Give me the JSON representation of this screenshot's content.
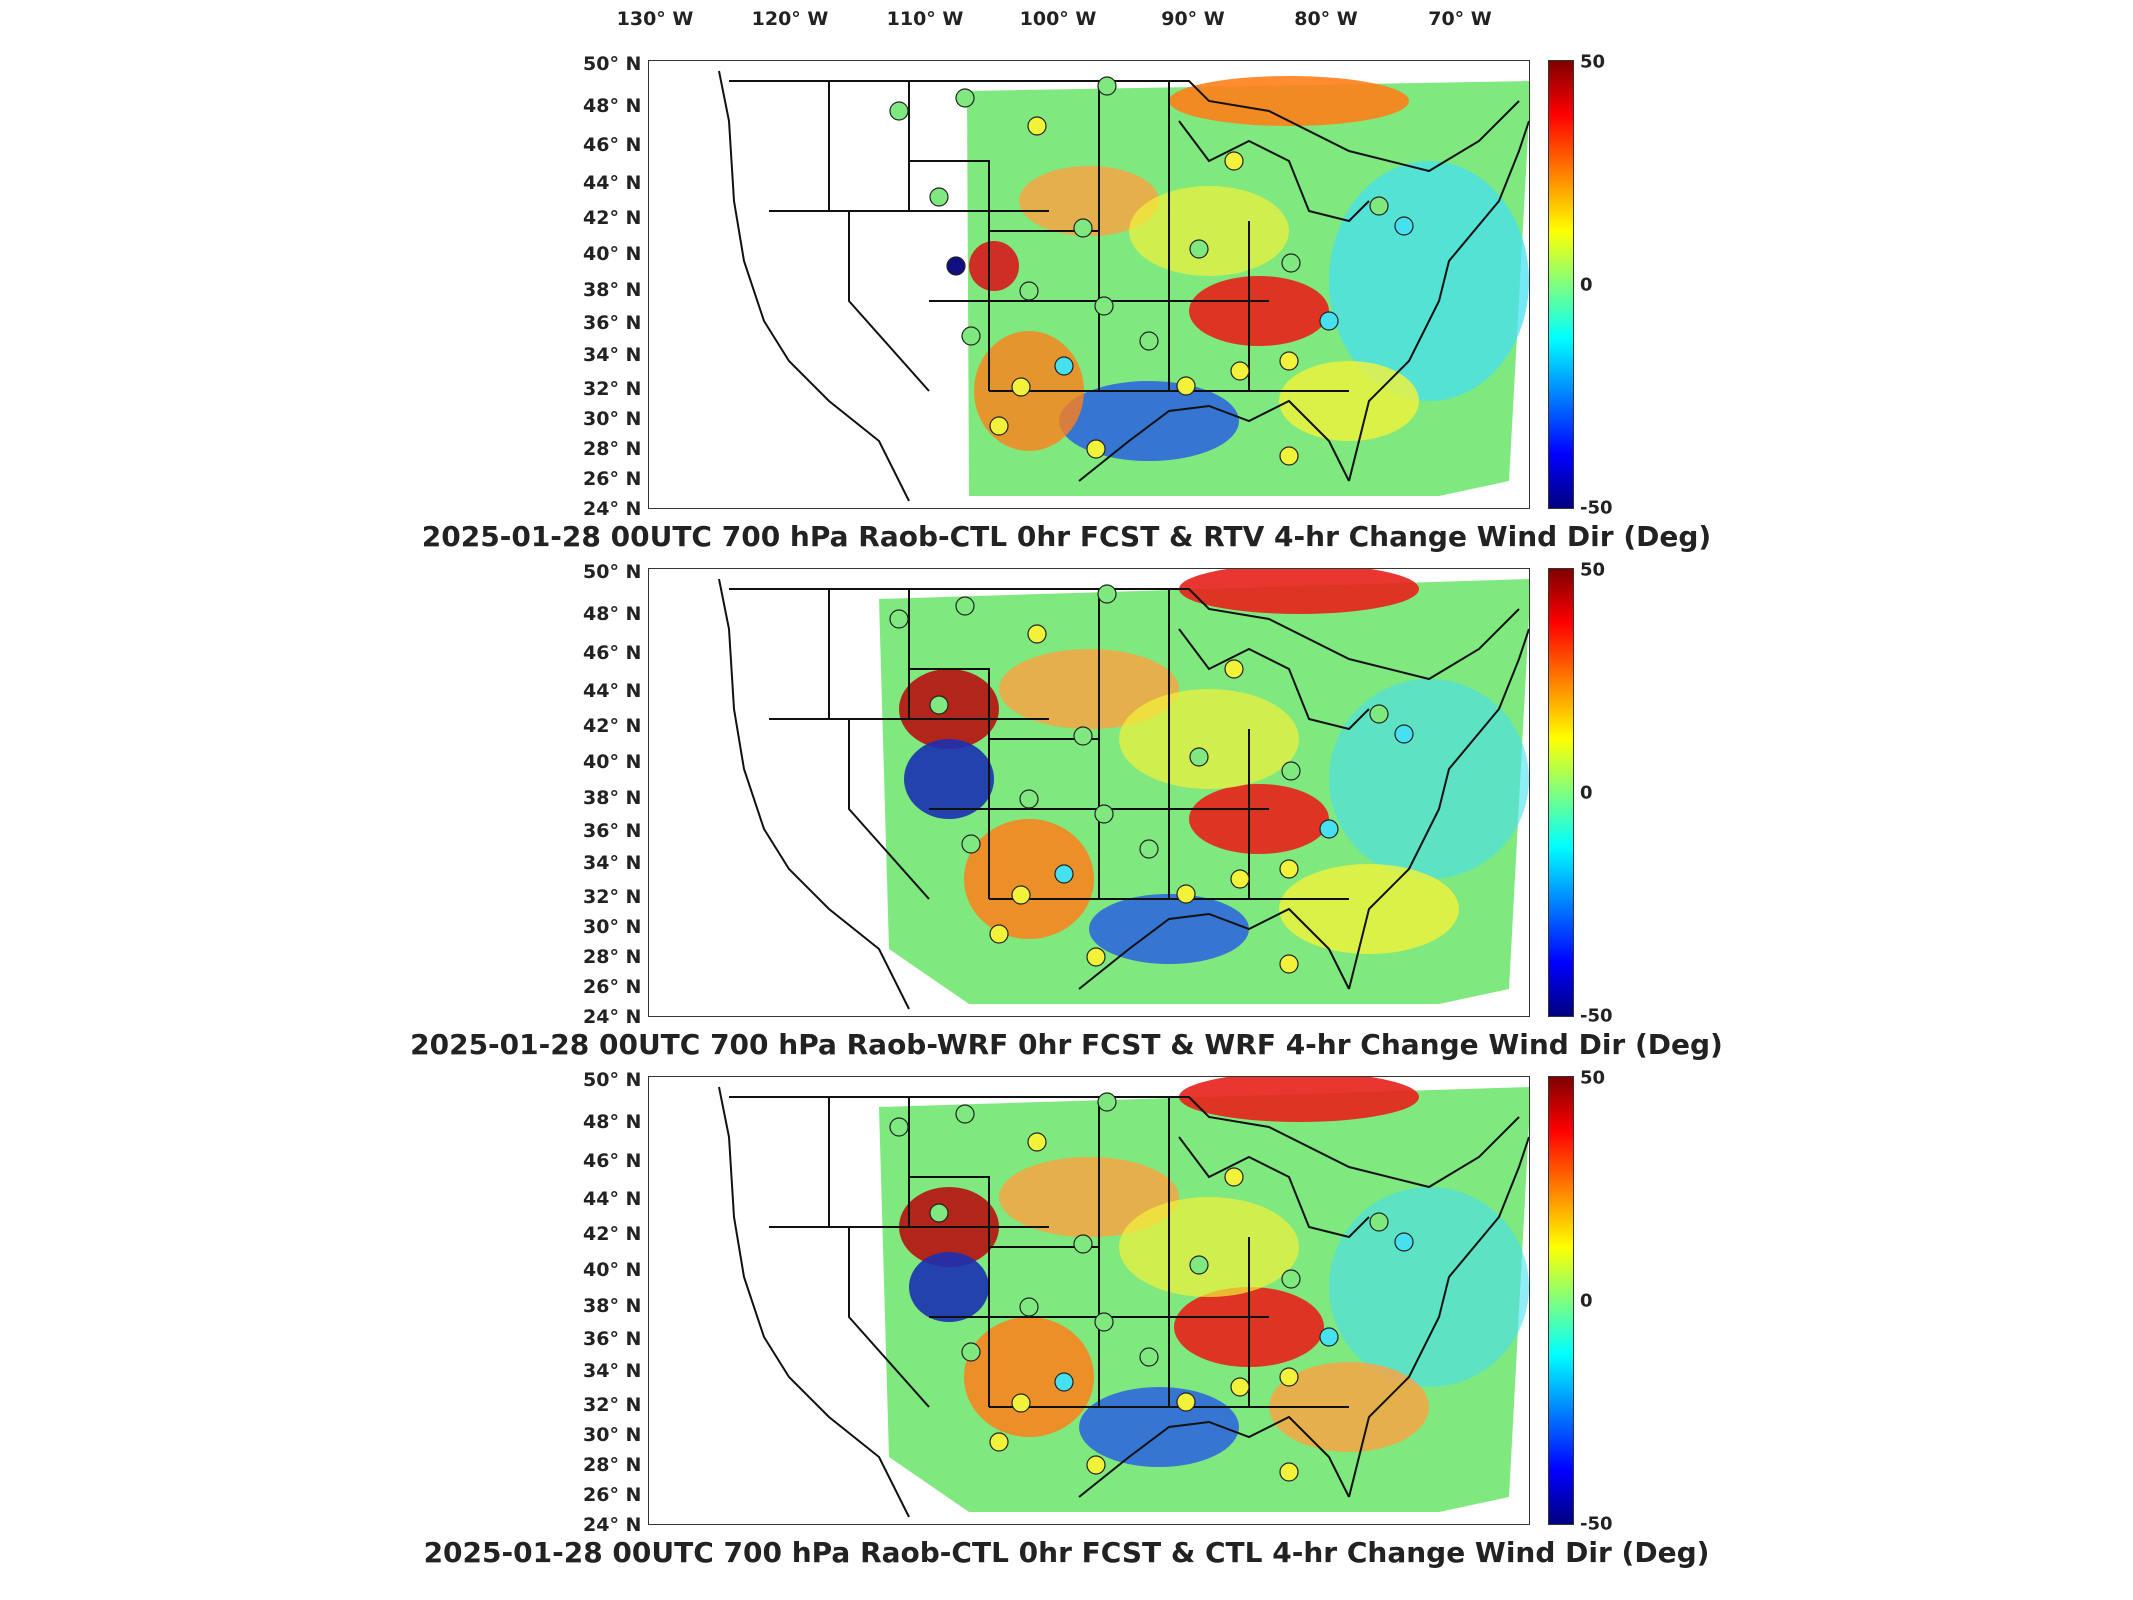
{
  "longitude_labels": [
    "130° W",
    "120° W",
    "110° W",
    "100° W",
    "90° W",
    "80° W",
    "70° W"
  ],
  "latitude_labels": [
    "50° N",
    "48° N",
    "46° N",
    "44° N",
    "42° N",
    "40° N",
    "38° N",
    "36° N",
    "34° N",
    "32° N",
    "30° N",
    "28° N",
    "26° N",
    "24° N"
  ],
  "colorbar": {
    "max": "50",
    "mid": "0",
    "min": "-50",
    "colormap": "jet"
  },
  "colors": {
    "red": "#d7191c",
    "orange": "#ff8c1a",
    "yellow": "#f2f23a",
    "green": "#7fe87f",
    "cyan": "#46e0f0",
    "blue": "#2a60e0",
    "dark_blue": "#101080"
  },
  "panels": [
    {
      "title": "2025-01-28 00UTC 700 hPa Raob-CTL 0hr FCST & RTV 4-hr Change Wind Dir (Deg)"
    },
    {
      "title": "2025-01-28 00UTC 700 hPa Raob-WRF 0hr FCST & WRF 4-hr Change Wind Dir (Deg)"
    },
    {
      "title": "2025-01-28 00UTC 700 hPa Raob-CTL 0hr FCST & CTL 4-hr Change Wind Dir (Deg)"
    }
  ]
}
